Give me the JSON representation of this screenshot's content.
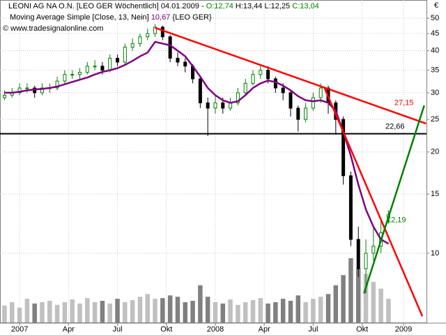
{
  "chart_data": {
    "type": "candlestick",
    "title": "LEONI AG NA O.N. [LEO GER  Wöchentlich] 04.01.2009 -",
    "ohlc_labels": [
      {
        "text": "O:12,74",
        "color": "#008000"
      },
      {
        "text": "H:13,44 L:12,25",
        "color": "#000000"
      },
      {
        "text": "C:13,04",
        "color": "#008000"
      }
    ],
    "indicator_label": "Moving Average Simple [Close, 13, Nein]",
    "indicator_value": {
      "value": 10.67,
      "label": "10,67"
    },
    "indicator_suffix": "{LEO GER}",
    "copyright": "© www.tradesignalonline.com",
    "currency": "€",
    "log_scale": true,
    "grid": true,
    "x": [
      -4,
      -2,
      0,
      2,
      4,
      6,
      8,
      10,
      12,
      14,
      16,
      18,
      20,
      22,
      24,
      26,
      28,
      30,
      32,
      34,
      36,
      38,
      40,
      42,
      44,
      46,
      48,
      50,
      52,
      54,
      56,
      58,
      60,
      62,
      64,
      66,
      68,
      70,
      72,
      74,
      76,
      78,
      80,
      82,
      84,
      86,
      88,
      90,
      92,
      94,
      96,
      98
    ],
    "open": [
      29,
      29.5,
      30,
      31,
      31,
      30,
      31,
      31,
      32.5,
      34,
      34,
      34.5,
      36,
      36,
      35,
      38,
      37,
      41,
      42,
      44,
      45,
      47,
      44,
      38,
      37,
      36,
      33,
      28,
      27,
      28,
      27,
      28,
      30,
      32,
      34,
      35,
      33,
      31,
      30,
      27,
      25,
      27,
      29,
      31,
      28,
      25,
      17,
      11,
      9,
      10,
      10.5,
      12.74
    ],
    "high": [
      30.5,
      31,
      32,
      32,
      31.5,
      32,
      32,
      33.5,
      35,
      35,
      35.5,
      37,
      37.5,
      37,
      39,
      39,
      42,
      43.5,
      45,
      46.5,
      48,
      47.5,
      44.5,
      39.5,
      38,
      36.5,
      33.5,
      29,
      29.5,
      29,
      29,
      31,
      33,
      35,
      36.5,
      36,
      33.5,
      32,
      30.5,
      27.5,
      28,
      30,
      32,
      31.5,
      28.5,
      25.5,
      17.5,
      12,
      11,
      12,
      12.5,
      13.44
    ],
    "low": [
      28.5,
      29,
      29.5,
      30,
      29,
      29.5,
      30,
      30.5,
      32,
      33,
      33,
      34,
      35,
      34,
      34.5,
      36,
      36.5,
      40,
      41,
      43,
      44,
      43,
      37,
      36,
      34.5,
      32,
      27,
      22.3,
      26,
      26,
      26.5,
      27.5,
      29.5,
      31.5,
      33,
      32,
      30,
      28.5,
      25.5,
      23,
      24.5,
      26.5,
      28,
      26,
      22.5,
      16,
      10.5,
      8.5,
      7.6,
      9.5,
      10,
      12.25
    ],
    "close": [
      29.5,
      30,
      31,
      31,
      30,
      31,
      31,
      32.5,
      34,
      34,
      34.5,
      36,
      36,
      35,
      38,
      37,
      41,
      42,
      44,
      45,
      47,
      44,
      38,
      37,
      36,
      33,
      28,
      27,
      28,
      27,
      28,
      30,
      32,
      34,
      35,
      33,
      31,
      30,
      27,
      25,
      27,
      29,
      31,
      28,
      25,
      17,
      11,
      9,
      10,
      10.5,
      11.5,
      13.04
    ],
    "volume": [
      250,
      300,
      220,
      350,
      280,
      300,
      320,
      260,
      300,
      340,
      280,
      360,
      300,
      320,
      280,
      350,
      300,
      330,
      380,
      420,
      350,
      360,
      400,
      380,
      300,
      320,
      550,
      380,
      300,
      280,
      340,
      260,
      300,
      330,
      360,
      280,
      300,
      350,
      320,
      400,
      300,
      350,
      380,
      420,
      550,
      700,
      950,
      800,
      720,
      600,
      500,
      350
    ],
    "up_color": "#008000",
    "down_color": "#000000",
    "volume_up_color": "#c0c0c0",
    "volume_down_color": "#808080",
    "moving_average": {
      "color": "#800080",
      "values": [
        30,
        30,
        30.2,
        30.5,
        30.7,
        30.8,
        31,
        31.3,
        31.8,
        32.3,
        32.8,
        33.3,
        34,
        34.6,
        35,
        35.5,
        36.3,
        37.3,
        38.5,
        39.5,
        42.5,
        42,
        41.5,
        40,
        38.5,
        36,
        33.5,
        31,
        29.5,
        28.5,
        28,
        28.3,
        29.5,
        31,
        32,
        32.6,
        32.3,
        31.5,
        30.5,
        29.3,
        28.5,
        28.3,
        28.5,
        28,
        26.5,
        23,
        19.5,
        16,
        13.5,
        12,
        11,
        10.67
      ]
    },
    "trend_lines": [
      {
        "color": "#ff0000",
        "start": [
          36,
          46.8
        ],
        "end": [
          108,
          24.3
        ]
      },
      {
        "color": "#ff0000",
        "start": [
          81,
          31
        ],
        "end": [
          107,
          6.5
        ]
      },
      {
        "color": "#008000",
        "start": [
          91.5,
          7.6
        ],
        "end": [
          107.5,
          27.5
        ]
      }
    ],
    "support_line": {
      "value": 22.66,
      "label": "22,66",
      "color": "#000000"
    },
    "annotations": [
      {
        "value": 27.15,
        "label": "27,15",
        "color": "#ff0000"
      },
      {
        "value": 12.19,
        "label": "12,19",
        "color": "#008000"
      }
    ],
    "xlim": [
      -5.2,
      108.1
    ],
    "xticks": [
      {
        "value": 0,
        "label": "2007"
      },
      {
        "value": 13,
        "label": "Apr"
      },
      {
        "value": 26,
        "label": "Jul"
      },
      {
        "value": 39,
        "label": "Okt"
      },
      {
        "value": 52,
        "label": "2008"
      },
      {
        "value": 65,
        "label": "Apr"
      },
      {
        "value": 78,
        "label": "Jul"
      },
      {
        "value": 91,
        "label": "Okt"
      },
      {
        "value": 102,
        "label": "2009"
      }
    ],
    "ylim": [
      6.23,
      56.6
    ],
    "yticks": [
      10,
      15,
      20,
      25,
      30,
      35,
      40,
      45,
      50
    ]
  }
}
